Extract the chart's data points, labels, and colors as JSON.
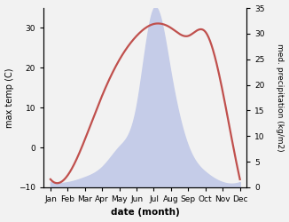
{
  "months": [
    "Jan",
    "Feb",
    "Mar",
    "Apr",
    "May",
    "Jun",
    "Jul",
    "Aug",
    "Sep",
    "Oct",
    "Nov",
    "Dec"
  ],
  "temp": [
    -8,
    -7,
    2,
    13,
    22,
    28,
    31,
    30,
    28,
    29,
    14,
    -8
  ],
  "precip": [
    1,
    1,
    2,
    4,
    8,
    16,
    35,
    22,
    8,
    3,
    1,
    1
  ],
  "temp_ylim": [
    -10,
    35
  ],
  "temp_yticks": [
    -10,
    0,
    10,
    20,
    30
  ],
  "precip_ylim": [
    0,
    35
  ],
  "precip_yticks": [
    0,
    5,
    10,
    15,
    20,
    25,
    30,
    35
  ],
  "temp_color": "#c0504d",
  "precip_fill_color": "#c5cce8",
  "xlabel": "date (month)",
  "ylabel_left": "max temp (C)",
  "ylabel_right": "med. precipitation (kg/m2)",
  "bg_color": "#f2f2f2",
  "plot_bg": "#ffffff",
  "linewidth": 1.6
}
